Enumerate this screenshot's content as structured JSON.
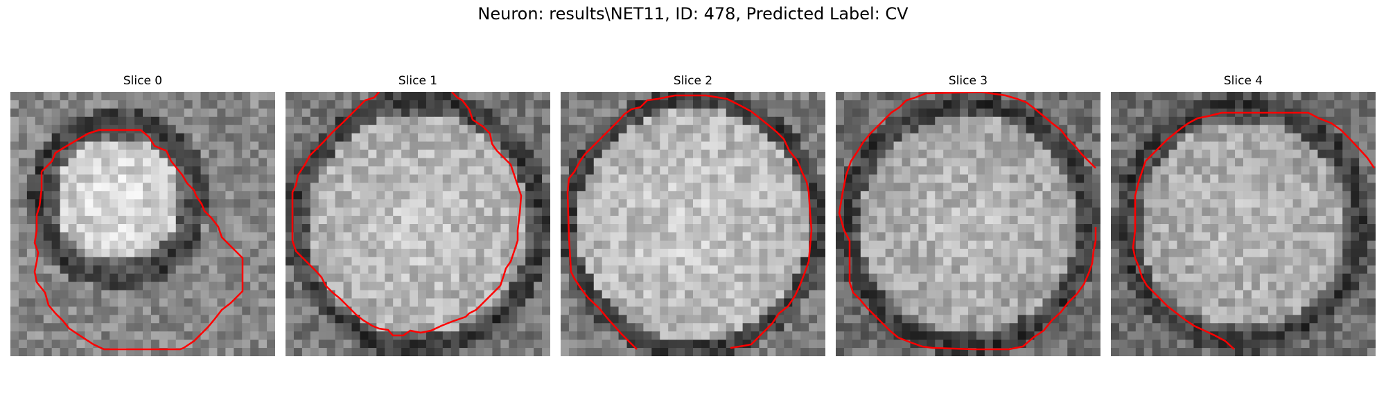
{
  "figure": {
    "title": "Neuron: results\\NET11, ID: 478, Predicted Label: CV"
  },
  "panels": [
    {
      "title": "Slice 0",
      "contour_color": "#ff0000"
    },
    {
      "title": "Slice 1",
      "contour_color": "#ff0000"
    },
    {
      "title": "Slice 2",
      "contour_color": "#ff0000"
    },
    {
      "title": "Slice 3",
      "contour_color": "#ff0000"
    },
    {
      "title": "Slice 4",
      "contour_color": "#ff0000"
    }
  ]
}
